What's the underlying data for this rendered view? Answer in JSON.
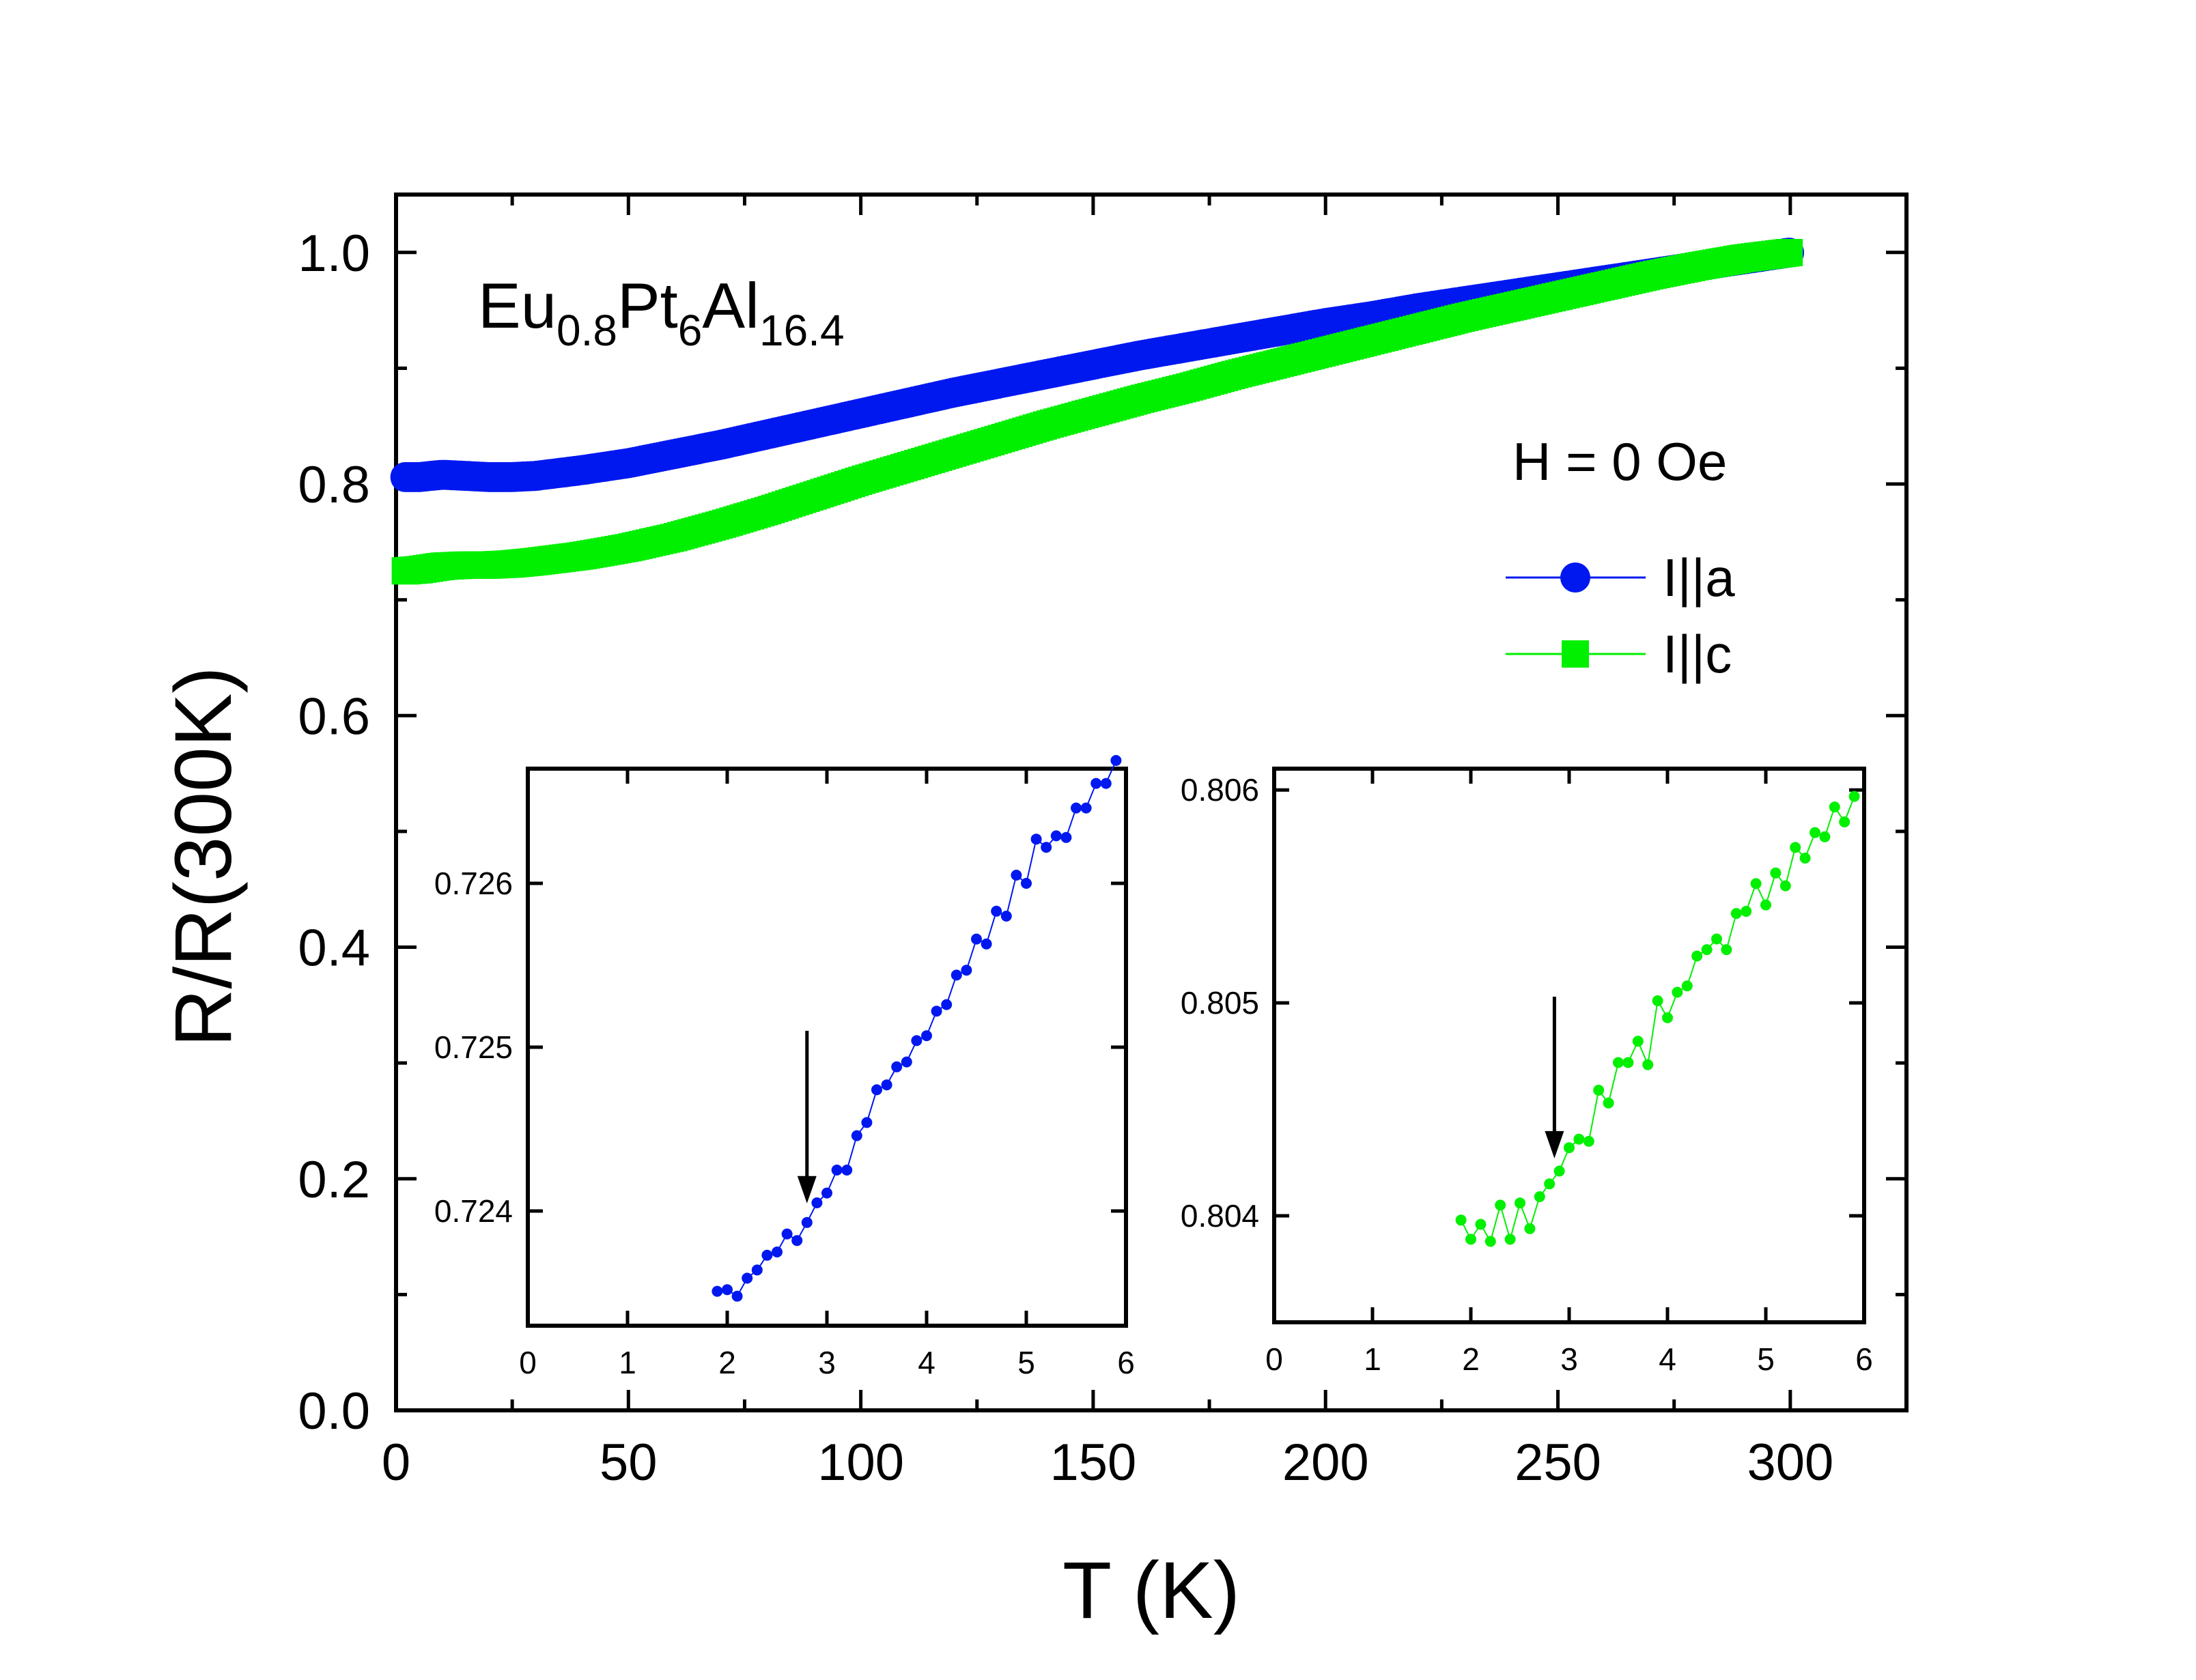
{
  "colors": {
    "series_a": "#0018f0",
    "series_c": "#00f000",
    "frame": "#000000"
  },
  "chart_data": [
    {
      "id": "main",
      "type": "scatter",
      "title": "",
      "xlabel": "T (K)",
      "ylabel": "R/R(300K)",
      "xlim": [
        0,
        325
      ],
      "ylim": [
        0,
        1.05
      ],
      "xticks": [
        0,
        50,
        100,
        150,
        200,
        250,
        300
      ],
      "xtick_labels": [
        "0",
        "50",
        "100",
        "150",
        "200",
        "250",
        "300"
      ],
      "xminor_step": 25,
      "yticks": [
        0,
        0.2,
        0.4,
        0.6,
        0.8,
        1.0
      ],
      "ytick_labels": [
        "0.0",
        "0.2",
        "0.4",
        "0.6",
        "0.8",
        "1.0"
      ],
      "yminor_step": 0.1,
      "grid": false,
      "legend_position": "right",
      "annotations": {
        "formula": {
          "base1": "Eu",
          "sub1": "0.8",
          "base2": "Pt",
          "sub2": "6",
          "base3": "Al",
          "sub3": "16.4"
        },
        "field": "H = 0 Oe"
      },
      "series": [
        {
          "name": "I||a",
          "marker": "circle",
          "color": "#0018f0",
          "x": [
            2,
            5,
            10,
            15,
            20,
            25,
            30,
            40,
            50,
            60,
            70,
            80,
            90,
            100,
            110,
            120,
            130,
            140,
            150,
            160,
            170,
            180,
            190,
            200,
            210,
            220,
            230,
            240,
            250,
            260,
            270,
            280,
            290,
            300
          ],
          "y": [
            0.806,
            0.806,
            0.808,
            0.807,
            0.806,
            0.806,
            0.807,
            0.812,
            0.818,
            0.826,
            0.834,
            0.843,
            0.852,
            0.861,
            0.87,
            0.879,
            0.887,
            0.895,
            0.903,
            0.911,
            0.918,
            0.925,
            0.932,
            0.939,
            0.945,
            0.952,
            0.958,
            0.964,
            0.97,
            0.976,
            0.982,
            0.988,
            0.994,
            1.0
          ]
        },
        {
          "name": "I||c",
          "marker": "square",
          "color": "#00f000",
          "x": [
            2,
            5,
            10,
            15,
            20,
            25,
            30,
            40,
            50,
            60,
            70,
            80,
            90,
            100,
            110,
            120,
            130,
            140,
            150,
            160,
            170,
            180,
            190,
            200,
            210,
            220,
            230,
            240,
            250,
            260,
            270,
            280,
            290,
            300
          ],
          "y": [
            0.725,
            0.726,
            0.729,
            0.73,
            0.73,
            0.731,
            0.733,
            0.738,
            0.745,
            0.754,
            0.765,
            0.777,
            0.79,
            0.803,
            0.815,
            0.827,
            0.839,
            0.851,
            0.862,
            0.873,
            0.883,
            0.894,
            0.904,
            0.914,
            0.924,
            0.934,
            0.944,
            0.953,
            0.962,
            0.971,
            0.98,
            0.988,
            0.995,
            1.0
          ]
        }
      ]
    },
    {
      "id": "inset_a",
      "type": "line",
      "xlabel": "",
      "ylabel": "",
      "xlim": [
        0,
        6
      ],
      "ylim": [
        0.7233,
        0.7267
      ],
      "xticks": [
        0,
        1,
        2,
        3,
        4,
        5,
        6
      ],
      "xtick_labels": [
        "0",
        "1",
        "2",
        "3",
        "4",
        "5",
        "6"
      ],
      "yticks": [
        0.724,
        0.725,
        0.726
      ],
      "ytick_labels": [
        "0.724",
        "0.725",
        "0.726"
      ],
      "arrow_at_x": 2.8,
      "series": [
        {
          "name": "I||a inset",
          "color": "#0018f0",
          "x": [
            1.9,
            2.0,
            2.1,
            2.2,
            2.3,
            2.4,
            2.5,
            2.6,
            2.7,
            2.8,
            2.9,
            3.0,
            3.1,
            3.2,
            3.3,
            3.4,
            3.5,
            3.6,
            3.7,
            3.8,
            3.9,
            4.0,
            4.1,
            4.2,
            4.3,
            4.4,
            4.5,
            4.6,
            4.7,
            4.8,
            4.9,
            5.0,
            5.1,
            5.2,
            5.3,
            5.4,
            5.5,
            5.6,
            5.7,
            5.8,
            5.9
          ],
          "y": [
            0.72351,
            0.72352,
            0.72348,
            0.72359,
            0.72364,
            0.72373,
            0.72375,
            0.72386,
            0.72382,
            0.72393,
            0.72405,
            0.72411,
            0.72425,
            0.72425,
            0.72446,
            0.72454,
            0.72474,
            0.72477,
            0.72488,
            0.72491,
            0.72504,
            0.72507,
            0.72522,
            0.72526,
            0.72544,
            0.72547,
            0.72566,
            0.72563,
            0.72583,
            0.7258,
            0.72605,
            0.726,
            0.72627,
            0.72622,
            0.72629,
            0.72628,
            0.72646,
            0.72646,
            0.72661,
            0.72661,
            0.72675
          ]
        }
      ]
    },
    {
      "id": "inset_c",
      "type": "line",
      "xlabel": "",
      "ylabel": "",
      "xlim": [
        0,
        6
      ],
      "ylim": [
        0.8035,
        0.8061
      ],
      "xticks": [
        0,
        1,
        2,
        3,
        4,
        5,
        6
      ],
      "xtick_labels": [
        "0",
        "1",
        "2",
        "3",
        "4",
        "5",
        "6"
      ],
      "yticks": [
        0.804,
        0.805,
        0.806
      ],
      "ytick_labels": [
        "0.804",
        "0.805",
        "0.806"
      ],
      "arrow_at_x": 2.85,
      "series": [
        {
          "name": "I||c inset",
          "color": "#00f000",
          "x": [
            1.9,
            2.0,
            2.1,
            2.2,
            2.3,
            2.4,
            2.5,
            2.6,
            2.7,
            2.8,
            2.9,
            3.0,
            3.1,
            3.2,
            3.3,
            3.4,
            3.5,
            3.6,
            3.7,
            3.8,
            3.9,
            4.0,
            4.1,
            4.2,
            4.3,
            4.4,
            4.5,
            4.6,
            4.7,
            4.8,
            4.9,
            5.0,
            5.1,
            5.2,
            5.3,
            5.4,
            5.5,
            5.6,
            5.7,
            5.8,
            5.9
          ],
          "y": [
            0.80398,
            0.80389,
            0.80396,
            0.80388,
            0.80405,
            0.80389,
            0.80406,
            0.80394,
            0.80409,
            0.80415,
            0.80421,
            0.80432,
            0.80436,
            0.80435,
            0.80459,
            0.80453,
            0.80472,
            0.80472,
            0.80482,
            0.80471,
            0.80501,
            0.80493,
            0.80505,
            0.80508,
            0.80522,
            0.80525,
            0.8053,
            0.80525,
            0.80542,
            0.80543,
            0.80556,
            0.80546,
            0.80561,
            0.80555,
            0.80573,
            0.80568,
            0.8058,
            0.80578,
            0.80592,
            0.80585,
            0.80597
          ]
        }
      ]
    }
  ]
}
